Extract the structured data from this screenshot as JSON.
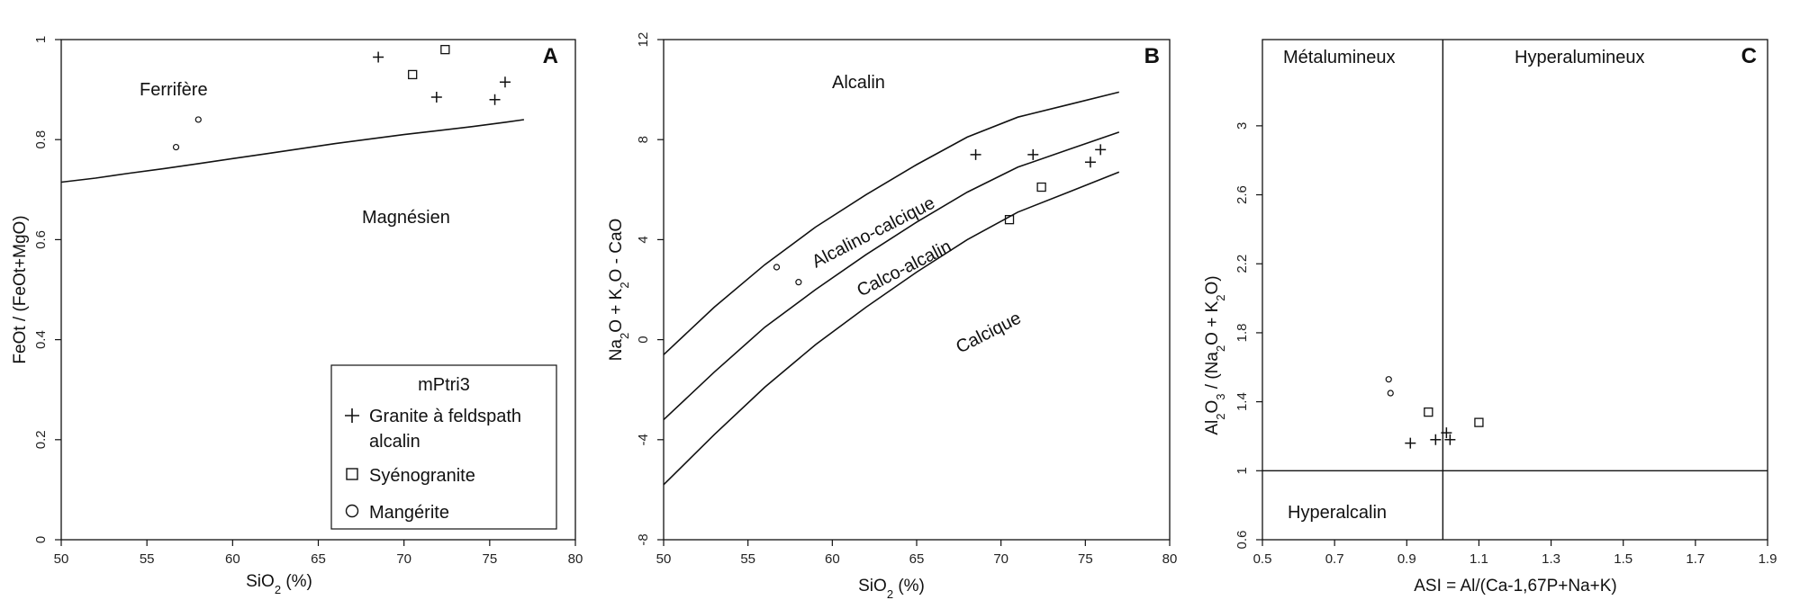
{
  "chart_data": [
    {
      "type": "scatter",
      "panel": "A",
      "xlabel_main": "SiO",
      "xlabel_sub": "2",
      "xlabel_end": " (%)",
      "ylabel": "FeOt / (FeOt+MgO)",
      "xlim": [
        50,
        80
      ],
      "ylim": [
        0,
        1
      ],
      "xticks": [
        "50",
        "55",
        "60",
        "65",
        "70",
        "75",
        "80"
      ],
      "yticks": [
        "0",
        "0.2",
        "0.4",
        "0.6",
        "0.8",
        "1"
      ],
      "regions": [
        "Ferrifère",
        "Magnésien"
      ],
      "boundary": {
        "x": [
          50,
          52,
          54,
          56,
          58,
          60,
          62,
          64,
          66,
          68,
          70,
          72,
          74,
          76,
          77
        ],
        "y": [
          0.715,
          0.723,
          0.733,
          0.742,
          0.752,
          0.762,
          0.772,
          0.782,
          0.792,
          0.801,
          0.81,
          0.818,
          0.826,
          0.835,
          0.84
        ]
      },
      "series": [
        {
          "name": "Granite à feldspath alcalin",
          "marker": "plus",
          "x": [
            68.5,
            71.9,
            75.3,
            75.9
          ],
          "y": [
            0.965,
            0.885,
            0.88,
            0.915
          ]
        },
        {
          "name": "Syénogranite",
          "marker": "square",
          "x": [
            70.5,
            72.4
          ],
          "y": [
            0.93,
            0.98
          ]
        },
        {
          "name": "Mangérite",
          "marker": "circle",
          "x": [
            56.7,
            58.0
          ],
          "y": [
            0.785,
            0.84
          ]
        }
      ],
      "legend": {
        "title": "mPtri3",
        "placement": "bottom-right",
        "entries": [
          "Granite à feldspath",
          "alcalin",
          "Syénogranite",
          "Mangérite"
        ]
      }
    },
    {
      "type": "scatter",
      "panel": "B",
      "xlabel_main": "SiO",
      "xlabel_sub": "2",
      "xlabel_end": " (%)",
      "ylabel_parts": [
        "Na",
        "2",
        "O + K",
        "2",
        "O - CaO"
      ],
      "xlim": [
        50,
        80
      ],
      "ylim": [
        -8,
        12
      ],
      "xticks": [
        "50",
        "55",
        "60",
        "65",
        "70",
        "75",
        "80"
      ],
      "yticks": [
        "-8",
        "-4",
        "0",
        "4",
        "8",
        "12"
      ],
      "regions": [
        "Alcalin",
        "Alcalino-calcique",
        "Calco-alcalin",
        "Calcique"
      ],
      "boundaries": [
        {
          "x": [
            50,
            53,
            56,
            59,
            62,
            65,
            68,
            71,
            74,
            77
          ],
          "y": [
            -0.6,
            1.3,
            3.0,
            4.5,
            5.8,
            7.0,
            8.1,
            8.9,
            9.4,
            9.9
          ]
        },
        {
          "x": [
            50,
            53,
            56,
            59,
            62,
            65,
            68,
            71,
            74,
            77
          ],
          "y": [
            -3.2,
            -1.3,
            0.5,
            2.0,
            3.4,
            4.7,
            5.9,
            6.9,
            7.6,
            8.3
          ]
        },
        {
          "x": [
            50,
            53,
            56,
            59,
            62,
            65,
            68,
            71,
            74,
            77
          ],
          "y": [
            -5.8,
            -3.8,
            -1.9,
            -0.2,
            1.3,
            2.7,
            4.0,
            5.1,
            5.9,
            6.7
          ]
        }
      ],
      "series": [
        {
          "name": "Granite à feldspath alcalin",
          "marker": "plus",
          "x": [
            68.5,
            71.9,
            75.3,
            75.9
          ],
          "y": [
            7.4,
            7.4,
            7.1,
            7.6
          ]
        },
        {
          "name": "Syénogranite",
          "marker": "square",
          "x": [
            70.5,
            72.4
          ],
          "y": [
            4.8,
            6.1
          ]
        },
        {
          "name": "Mangérite",
          "marker": "circle",
          "x": [
            56.7,
            58.0
          ],
          "y": [
            2.9,
            2.3
          ]
        }
      ]
    },
    {
      "type": "scatter",
      "panel": "C",
      "xlabel": "ASI = Al/(Ca-1,67P+Na+K)",
      "ylabel_parts": [
        "Al",
        "2",
        "O",
        "3",
        " / (Na",
        "2",
        "O + K",
        "2",
        "O)"
      ],
      "xlim": [
        0.5,
        1.9
      ],
      "ylim": [
        0.6,
        3.5
      ],
      "xticks": [
        "0.5",
        "0.7",
        "0.9",
        "1.1",
        "1.3",
        "1.5",
        "1.7",
        "1.9"
      ],
      "yticks": [
        "0.6",
        "1",
        "1.4",
        "1.8",
        "2.2",
        "2.6",
        "3"
      ],
      "regions": [
        "Métalumineux",
        "Hyperalumineux",
        "Hyperalcalin"
      ],
      "reference_lines": {
        "x": 1.0,
        "y": 1.0
      },
      "series": [
        {
          "name": "Granite à feldspath alcalin",
          "marker": "plus",
          "x": [
            0.91,
            0.98,
            1.01,
            1.02
          ],
          "y": [
            1.16,
            1.18,
            1.22,
            1.18
          ]
        },
        {
          "name": "Syénogranite",
          "marker": "square",
          "x": [
            0.96,
            1.1
          ],
          "y": [
            1.34,
            1.28
          ]
        },
        {
          "name": "Mangérite",
          "marker": "circle",
          "x": [
            0.85,
            0.855
          ],
          "y": [
            1.53,
            1.45
          ]
        }
      ]
    }
  ]
}
